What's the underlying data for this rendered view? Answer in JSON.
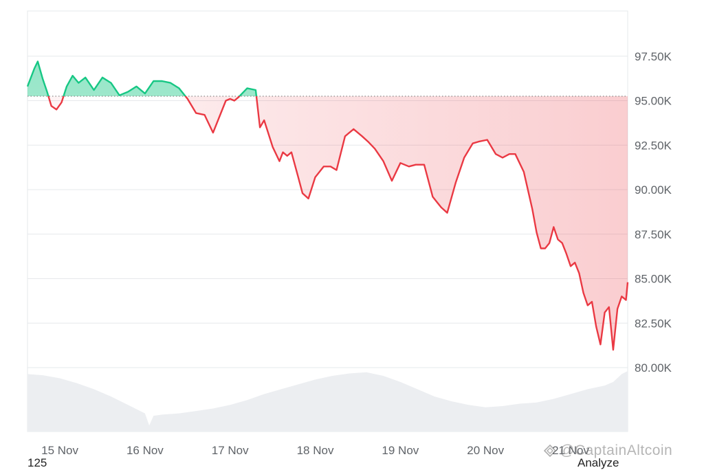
{
  "chart_data": {
    "type": "area",
    "title": "",
    "xlabel": "",
    "ylabel": "",
    "baseline": 95250,
    "ylim": [
      77500,
      100000
    ],
    "y_ticks": [
      "97.50K",
      "95.00K",
      "92.50K",
      "90.00K",
      "87.50K",
      "85.00K",
      "82.50K",
      "80.00K"
    ],
    "y_tick_values": [
      97500,
      95000,
      92500,
      90000,
      87500,
      85000,
      82500,
      80000
    ],
    "x_ticks": [
      "15 Nov",
      "16 Nov",
      "17 Nov",
      "18 Nov",
      "19 Nov",
      "20 Nov",
      "21 Nov"
    ],
    "x_range_days": [
      14.62,
      21.67
    ],
    "x_tick_days": [
      15,
      16,
      17,
      18,
      19,
      20,
      21
    ],
    "series": [
      {
        "x_days": [
          14.62,
          14.7,
          14.74,
          14.8,
          14.85,
          14.9,
          14.96,
          15.02,
          15.08,
          15.15,
          15.22,
          15.3,
          15.4,
          15.5,
          15.6,
          15.7,
          15.8,
          15.9,
          16.0,
          16.1,
          16.2,
          16.3,
          16.4,
          16.5,
          16.6,
          16.7,
          16.72,
          16.8,
          16.9,
          16.95,
          17.0,
          17.05,
          17.1,
          17.2,
          17.3,
          17.35,
          17.4,
          17.5,
          17.58,
          17.62,
          17.67,
          17.72,
          17.8,
          17.85,
          17.92,
          18.0,
          18.1,
          18.18,
          18.25,
          18.35,
          18.45,
          18.55,
          18.62,
          18.7,
          18.8,
          18.9,
          19.0,
          19.1,
          19.18,
          19.28,
          19.38,
          19.48,
          19.55,
          19.65,
          19.75,
          19.85,
          19.92,
          20.02,
          20.12,
          20.2,
          20.28,
          20.35,
          20.45,
          20.55,
          20.6,
          20.65,
          20.7,
          20.75,
          20.8,
          20.85,
          20.9,
          20.95,
          21.0,
          21.05,
          21.1,
          21.15,
          21.2,
          21.25,
          21.3,
          21.35,
          21.4,
          21.45,
          21.5,
          21.55,
          21.6,
          21.65,
          21.67
        ],
        "values": [
          95800,
          96800,
          97200,
          96200,
          95500,
          94700,
          94500,
          94900,
          95800,
          96400,
          96000,
          96300,
          95600,
          96300,
          96000,
          95300,
          95500,
          95800,
          95400,
          96100,
          96100,
          96000,
          95700,
          95100,
          94300,
          94200,
          94000,
          93200,
          94400,
          95000,
          95100,
          95000,
          95200,
          95700,
          95600,
          93500,
          93900,
          92400,
          91600,
          92100,
          91900,
          92100,
          90700,
          89800,
          89500,
          90700,
          91300,
          91300,
          91100,
          93000,
          93400,
          93000,
          92700,
          92300,
          91600,
          90500,
          91500,
          91300,
          91400,
          91400,
          89600,
          89000,
          88700,
          90400,
          91800,
          92600,
          92700,
          92800,
          92000,
          91800,
          92000,
          92000,
          91000,
          88900,
          87600,
          86700,
          86700,
          87000,
          87900,
          87200,
          87000,
          86400,
          85700,
          85900,
          85300,
          84200,
          83500,
          83700,
          82300,
          81300,
          83100,
          83400,
          81000,
          83300,
          84000,
          83800,
          84800
        ]
      }
    ],
    "volume_band": {
      "x_days": [
        14.62,
        14.8,
        15.0,
        15.2,
        15.4,
        15.6,
        15.8,
        16.0,
        16.05,
        16.1,
        16.2,
        16.4,
        16.6,
        16.8,
        17.0,
        17.2,
        17.4,
        17.6,
        17.8,
        18.0,
        18.2,
        18.4,
        18.6,
        18.8,
        19.0,
        19.2,
        19.4,
        19.6,
        19.8,
        20.0,
        20.2,
        20.4,
        20.6,
        20.8,
        21.0,
        21.2,
        21.4,
        21.5,
        21.6,
        21.67
      ],
      "relative_height": [
        0.95,
        0.93,
        0.88,
        0.8,
        0.7,
        0.58,
        0.44,
        0.3,
        0.1,
        0.26,
        0.28,
        0.3,
        0.34,
        0.38,
        0.44,
        0.52,
        0.62,
        0.7,
        0.78,
        0.86,
        0.92,
        0.96,
        0.98,
        0.92,
        0.82,
        0.7,
        0.58,
        0.5,
        0.44,
        0.4,
        0.42,
        0.46,
        0.48,
        0.54,
        0.62,
        0.7,
        0.76,
        0.82,
        0.95,
        1.0
      ]
    },
    "colors": {
      "up_line": "#16c784",
      "down_line": "#ea3943",
      "up_fill": "#16c784",
      "down_fill": "#ea3943",
      "grid": "#e6e8eb",
      "volume": "#eceef1",
      "baseline": "#888888"
    },
    "grid": true
  },
  "footer": {
    "left_value": "125",
    "right_label": "Analyze"
  },
  "watermark": {
    "text": "@CaptainAltcoin"
  }
}
